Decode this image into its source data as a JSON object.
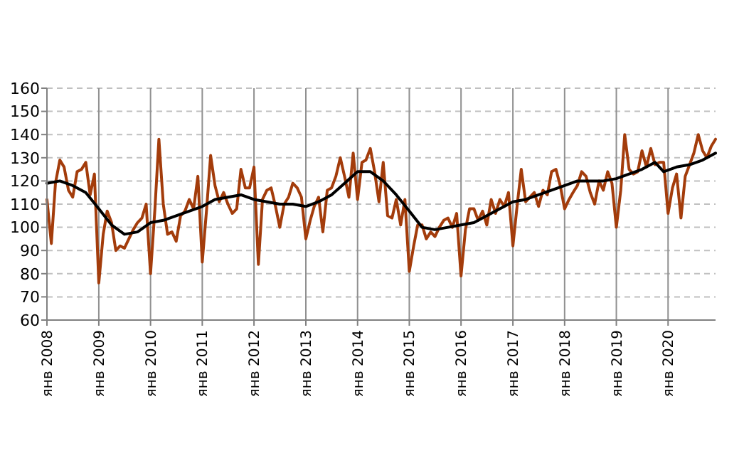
{
  "chart_data": {
    "type": "line",
    "x": [
      "2008-01",
      "2008-02",
      "2008-03",
      "2008-04",
      "2008-05",
      "2008-06",
      "2008-07",
      "2008-08",
      "2008-09",
      "2008-10",
      "2008-11",
      "2008-12",
      "2009-01",
      "2009-02",
      "2009-03",
      "2009-04",
      "2009-05",
      "2009-06",
      "2009-07",
      "2009-08",
      "2009-09",
      "2009-10",
      "2009-11",
      "2009-12",
      "2010-01",
      "2010-02",
      "2010-03",
      "2010-04",
      "2010-05",
      "2010-06",
      "2010-07",
      "2010-08",
      "2010-09",
      "2010-10",
      "2010-11",
      "2010-12",
      "2011-01",
      "2011-02",
      "2011-03",
      "2011-04",
      "2011-05",
      "2011-06",
      "2011-07",
      "2011-08",
      "2011-09",
      "2011-10",
      "2011-11",
      "2011-12",
      "2012-01",
      "2012-02",
      "2012-03",
      "2012-04",
      "2012-05",
      "2012-06",
      "2012-07",
      "2012-08",
      "2012-09",
      "2012-10",
      "2012-11",
      "2012-12",
      "2013-01",
      "2013-02",
      "2013-03",
      "2013-04",
      "2013-05",
      "2013-06",
      "2013-07",
      "2013-08",
      "2013-09",
      "2013-10",
      "2013-11",
      "2013-12",
      "2014-01",
      "2014-02",
      "2014-03",
      "2014-04",
      "2014-05",
      "2014-06",
      "2014-07",
      "2014-08",
      "2014-09",
      "2014-10",
      "2014-11",
      "2014-12",
      "2015-01",
      "2015-02",
      "2015-03",
      "2015-04",
      "2015-05",
      "2015-06",
      "2015-07",
      "2015-08",
      "2015-09",
      "2015-10",
      "2015-11",
      "2015-12",
      "2016-01",
      "2016-02",
      "2016-03",
      "2016-04",
      "2016-05",
      "2016-06",
      "2016-07",
      "2016-08",
      "2016-09",
      "2016-10",
      "2016-11",
      "2016-12",
      "2017-01",
      "2017-02",
      "2017-03",
      "2017-04",
      "2017-05",
      "2017-06",
      "2017-07",
      "2017-08",
      "2017-09",
      "2017-10",
      "2017-11",
      "2017-12",
      "2018-01",
      "2018-02",
      "2018-03",
      "2018-04",
      "2018-05",
      "2018-06",
      "2018-07",
      "2018-08",
      "2018-09",
      "2018-10",
      "2018-11",
      "2018-12",
      "2019-01",
      "2019-02",
      "2019-03",
      "2019-04",
      "2019-05",
      "2019-06",
      "2019-07",
      "2019-08",
      "2019-09",
      "2019-10",
      "2019-11",
      "2019-12",
      "2020-01",
      "2020-02",
      "2020-03",
      "2020-04",
      "2020-05",
      "2020-06",
      "2020-07",
      "2020-08",
      "2020-09",
      "2020-10",
      "2020-11",
      "2020-12"
    ],
    "series": [
      {
        "color": "#a33c0b",
        "values": [
          112,
          93,
          119,
          129,
          126,
          116,
          113,
          124,
          125,
          128,
          114,
          123,
          76,
          97,
          107,
          102,
          90,
          92,
          91,
          95,
          99,
          102,
          104,
          110,
          80,
          108,
          138,
          110,
          97,
          98,
          94,
          105,
          107,
          112,
          108,
          122,
          85,
          108,
          131,
          118,
          111,
          115,
          110,
          106,
          108,
          125,
          117,
          117,
          126,
          84,
          112,
          116,
          117,
          109,
          100,
          110,
          113,
          119,
          117,
          113,
          95,
          103,
          109,
          113,
          98,
          116,
          117,
          122,
          130,
          122,
          113,
          132,
          112,
          128,
          129,
          134,
          124,
          111,
          128,
          105,
          104,
          112,
          101,
          112,
          81,
          92,
          101,
          101,
          95,
          98,
          96,
          100,
          103,
          104,
          100,
          106,
          79,
          99,
          108,
          108,
          103,
          107,
          101,
          112,
          106,
          112,
          109,
          115,
          92,
          110,
          125,
          111,
          113,
          115,
          109,
          116,
          114,
          124,
          125,
          118,
          108,
          112,
          115,
          118,
          124,
          122,
          115,
          110,
          120,
          116,
          124,
          119,
          100,
          116,
          140,
          125,
          123,
          124,
          133,
          126,
          134,
          127,
          128,
          128,
          106,
          117,
          123,
          104,
          122,
          127,
          132,
          140,
          133,
          130,
          135,
          138
        ]
      },
      {
        "color": "#000000",
        "x": [
          "2008-01",
          "2008-04",
          "2008-07",
          "2008-10",
          "2009-01",
          "2009-04",
          "2009-07",
          "2009-10",
          "2010-01",
          "2010-04",
          "2010-07",
          "2010-10",
          "2011-01",
          "2011-04",
          "2011-07",
          "2011-10",
          "2012-01",
          "2012-04",
          "2012-07",
          "2012-10",
          "2013-01",
          "2013-04",
          "2013-07",
          "2013-10",
          "2014-01",
          "2014-04",
          "2014-07",
          "2014-10",
          "2015-01",
          "2015-04",
          "2015-07",
          "2015-10",
          "2016-01",
          "2016-04",
          "2016-07",
          "2016-10",
          "2017-01",
          "2017-04",
          "2017-07",
          "2017-10",
          "2018-01",
          "2018-04",
          "2018-07",
          "2018-10",
          "2019-01",
          "2019-04",
          "2019-07",
          "2019-10",
          "2019-12",
          "2020-03",
          "2020-06",
          "2020-09",
          "2020-12"
        ],
        "values": [
          119,
          120,
          118,
          115,
          108,
          101,
          97,
          98,
          102,
          103,
          105,
          107,
          109,
          112,
          113,
          114,
          112,
          111,
          110,
          110,
          109,
          111,
          114,
          119,
          124,
          124,
          120,
          114,
          107,
          100,
          99,
          100,
          101,
          102,
          105,
          108,
          111,
          112,
          114,
          116,
          118,
          120,
          120,
          120,
          121,
          123,
          125,
          128,
          124,
          126,
          127,
          129,
          132
        ]
      }
    ],
    "xlim": [
      "2008-01",
      "2020-12"
    ],
    "xticks": [
      {
        "value": "2008-01",
        "label": "янв 2008"
      },
      {
        "value": "2009-01",
        "label": "янв 2009"
      },
      {
        "value": "2010-01",
        "label": "янв 2010"
      },
      {
        "value": "2011-01",
        "label": "янв 2011"
      },
      {
        "value": "2012-01",
        "label": "янв 2012"
      },
      {
        "value": "2013-01",
        "label": "янв 2013"
      },
      {
        "value": "2014-01",
        "label": "янв 2014"
      },
      {
        "value": "2015-01",
        "label": "янв 2015"
      },
      {
        "value": "2016-01",
        "label": "янв 2016"
      },
      {
        "value": "2017-01",
        "label": "янв 2017"
      },
      {
        "value": "2018-01",
        "label": "янв 2018"
      },
      {
        "value": "2019-01",
        "label": "янв 2019"
      },
      {
        "value": "2020-01",
        "label": "янв 2020"
      }
    ],
    "ylim": [
      60,
      160
    ],
    "yticks": [
      60,
      70,
      80,
      90,
      100,
      110,
      120,
      130,
      140,
      150,
      160
    ],
    "grid": true,
    "line_style": "solid"
  }
}
